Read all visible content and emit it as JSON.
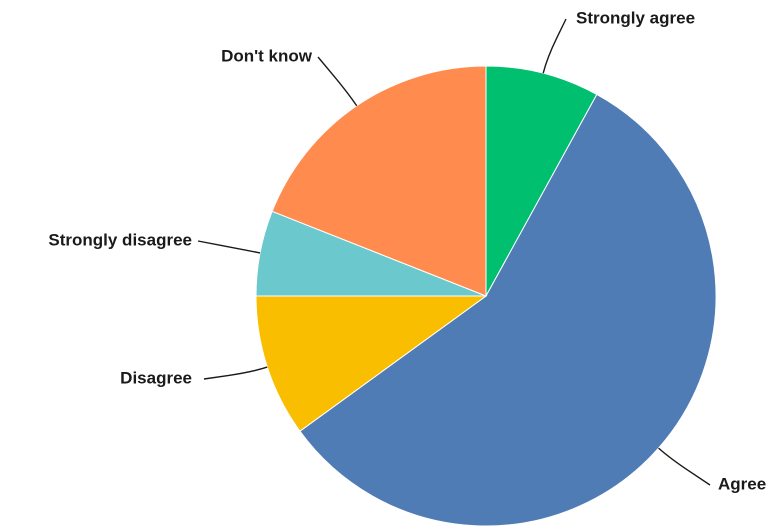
{
  "chart_data": {
    "type": "pie",
    "slices": [
      {
        "label": "Strongly agree",
        "value": 8,
        "color": "#00BF6F"
      },
      {
        "label": "Agree",
        "value": 57,
        "color": "#507CB6"
      },
      {
        "label": "Disagree",
        "value": 10,
        "color": "#F9BE00"
      },
      {
        "label": "Strongly disagree",
        "value": 6,
        "color": "#6BC8CD"
      },
      {
        "label": "Don't know",
        "value": 19,
        "color": "#FF8B4F"
      }
    ]
  }
}
